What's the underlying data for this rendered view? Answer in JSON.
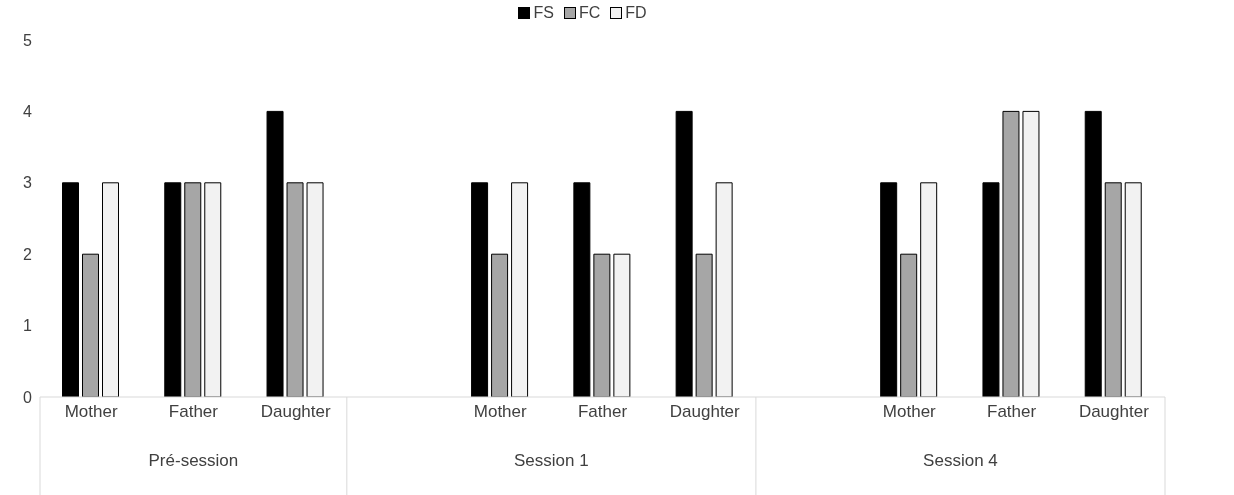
{
  "chart_data": {
    "type": "bar",
    "categories": [
      "Mother",
      "Father",
      "Daughter",
      null,
      "Mother",
      "Father",
      "Daughter",
      null,
      "Mother",
      "Father",
      "Daughter"
    ],
    "series": [
      {
        "name": "FS",
        "color": "#000000",
        "values": [
          3,
          3,
          4,
          null,
          3,
          3,
          4,
          null,
          3,
          3,
          4
        ]
      },
      {
        "name": "FC",
        "color": "#a6a6a6",
        "values": [
          2,
          3,
          3,
          null,
          2,
          2,
          2,
          null,
          2,
          4,
          3
        ]
      },
      {
        "name": "FD",
        "color": "#f2f2f2",
        "values": [
          3,
          3,
          3,
          null,
          3,
          2,
          3,
          null,
          3,
          4,
          3
        ]
      }
    ],
    "ylim": [
      0,
      5
    ],
    "yticks": [
      0,
      1,
      2,
      3,
      4,
      5
    ],
    "grid": false,
    "legend": "top",
    "annotations": [
      "Pré-session",
      "Session 1",
      "Session 4"
    ]
  }
}
